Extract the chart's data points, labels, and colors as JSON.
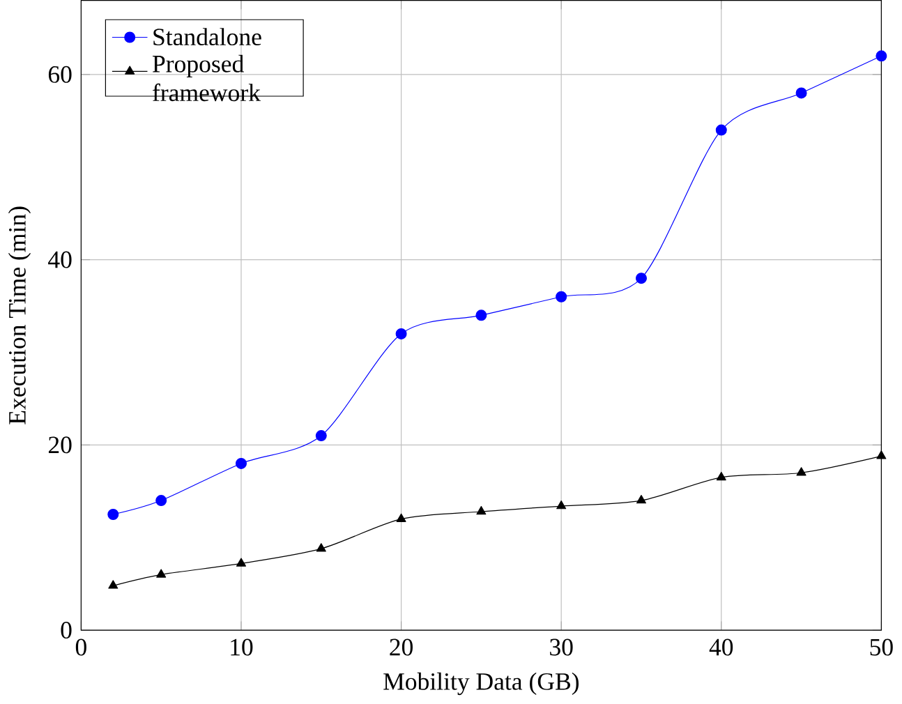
{
  "chart_data": {
    "type": "line",
    "xlabel": "Mobility Data (GB)",
    "ylabel": "Execution Time (min)",
    "x": [
      2,
      5,
      10,
      15,
      20,
      25,
      30,
      35,
      40,
      45,
      50
    ],
    "series": [
      {
        "name": "Standalone",
        "color": "#0000ff",
        "marker": "circle",
        "values": [
          12.5,
          14,
          18,
          21,
          32,
          34,
          36,
          38,
          54,
          58,
          62
        ]
      },
      {
        "name": "Proposed framework",
        "color": "#000000",
        "marker": "triangle",
        "values": [
          4.8,
          6,
          7.2,
          8.8,
          12,
          12.8,
          13.4,
          14,
          16.5,
          17,
          18.8
        ]
      }
    ],
    "xlim": [
      0,
      50
    ],
    "ylim": [
      0,
      68
    ],
    "xticks": [
      0,
      10,
      20,
      30,
      40,
      50
    ],
    "yticks": [
      0,
      20,
      40,
      60
    ],
    "grid": true,
    "legend": "top left",
    "line_style": "solid"
  }
}
